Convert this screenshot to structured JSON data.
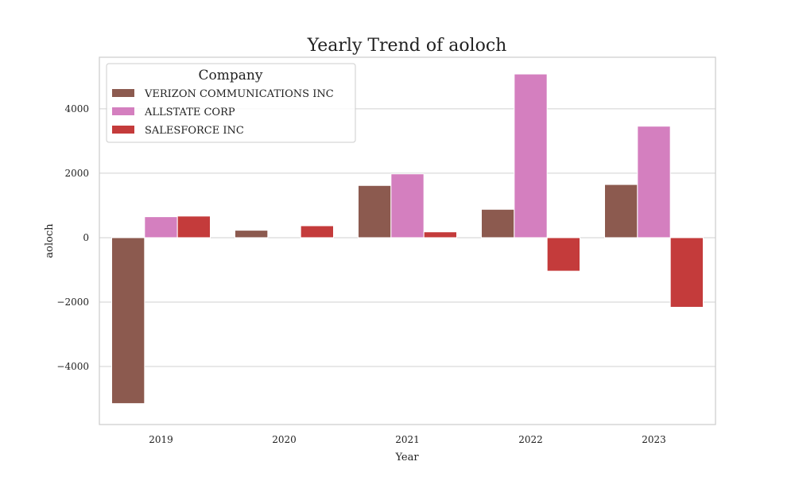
{
  "chart_data": {
    "type": "bar",
    "title": "Yearly Trend of aoloch",
    "xlabel": "Year",
    "ylabel": "aoloch",
    "categories": [
      "2019",
      "2020",
      "2021",
      "2022",
      "2023"
    ],
    "ylim": [
      -5800,
      5600
    ],
    "yticks": [
      -4000,
      -2000,
      0,
      2000,
      4000
    ],
    "ytick_labels": [
      "−4000",
      "−2000",
      "0",
      "2000",
      "4000"
    ],
    "grid": true,
    "legend": {
      "title": "Company",
      "placement": "top-left"
    },
    "series": [
      {
        "name": "VERIZON COMMUNICATIONS INC",
        "color": "#8c5a4f",
        "values": [
          -5150,
          230,
          1620,
          880,
          1650
        ]
      },
      {
        "name": "ALLSTATE CORP",
        "color": "#d47fbf",
        "values": [
          650,
          0,
          1980,
          5080,
          3460
        ]
      },
      {
        "name": "SALESFORCE INC",
        "color": "#c43b3b",
        "values": [
          670,
          370,
          180,
          -1040,
          -2160
        ]
      }
    ]
  }
}
